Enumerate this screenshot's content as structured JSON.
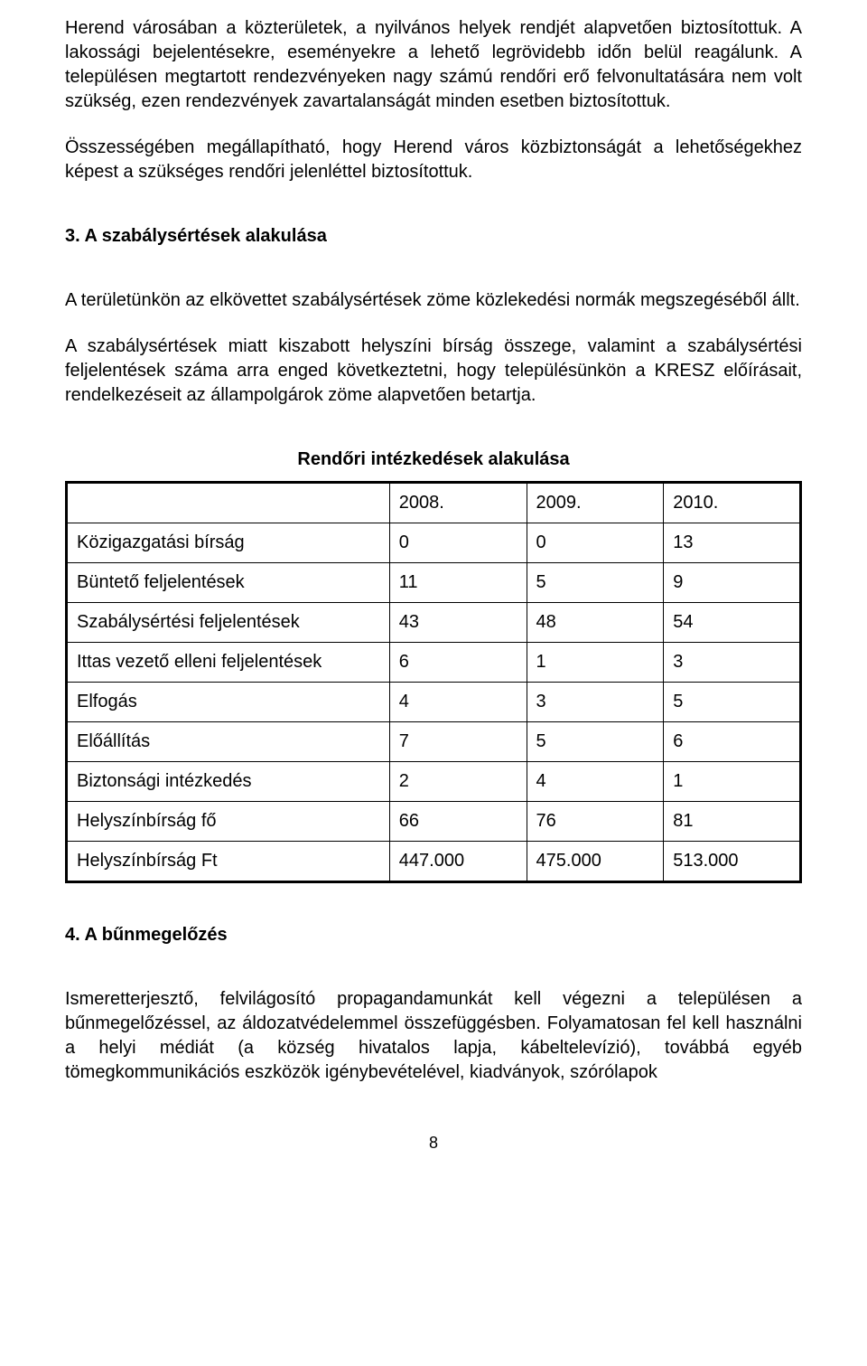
{
  "paragraphs": {
    "p1": "Herend városában a közterületek, a nyilvános helyek rendjét alapvetően biztosítottuk. A lakossági bejelentésekre, eseményekre a lehető legrövidebb időn belül reagálunk. A településen megtartott rendezvényeken nagy számú rendőri erő felvonultatására nem volt szükség, ezen rendezvények zavartalanságát minden esetben biztosítottuk.",
    "p2": "Összességében megállapítható, hogy Herend város közbiztonságát a lehetőségekhez képest a szükséges rendőri jelenléttel biztosítottuk.",
    "p3": "A területünkön az elkövettet szabálysértések zöme közlekedési normák megszegéséből állt.",
    "p4": "A szabálysértések miatt kiszabott helyszíni bírság összege, valamint a szabálysértési feljelentések száma arra enged következtetni, hogy településünkön a KRESZ előírásait, rendelkezéseit az állampolgárok zöme alapvetően betartja.",
    "p5": "Ismeretterjesztő, felvilágosító propagandamunkát kell végezni a településen a bűnmegelőzéssel, az áldozatvédelemmel összefüggésben. Folyamatosan fel kell használni a helyi médiát (a község hivatalos lapja, kábeltelevízió), továbbá egyéb tömegkommunikációs eszközök igénybevételével, kiadványok, szórólapok"
  },
  "headings": {
    "h3": "3. A szabálysértések alakulása",
    "h4": "4. A bűnmegelőzés",
    "table_title": "Rendőri intézkedések alakulása"
  },
  "table": {
    "type": "table",
    "border_color": "#000000",
    "background_color": "#ffffff",
    "text_color": "#000000",
    "font_size_pt": 15,
    "col_widths_pct": [
      44,
      18.66,
      18.66,
      18.66
    ],
    "columns": [
      "",
      "2008.",
      "2009.",
      "2010."
    ],
    "rows": [
      [
        "Közigazgatási bírság",
        "0",
        "0",
        "13"
      ],
      [
        "Büntető feljelentések",
        "11",
        "5",
        "9"
      ],
      [
        "Szabálysértési feljelentések",
        "43",
        "48",
        "54"
      ],
      [
        "Ittas vezető elleni feljelentések",
        "6",
        "1",
        "3"
      ],
      [
        "Elfogás",
        "4",
        "3",
        "5"
      ],
      [
        "Előállítás",
        "7",
        "5",
        "6"
      ],
      [
        "Biztonsági intézkedés",
        "2",
        "4",
        "1"
      ],
      [
        "Helyszínbírság fő",
        "66",
        "76",
        "81"
      ],
      [
        "Helyszínbírság Ft",
        "447.000",
        "475.000",
        "513.000"
      ]
    ]
  },
  "page_number": "8"
}
